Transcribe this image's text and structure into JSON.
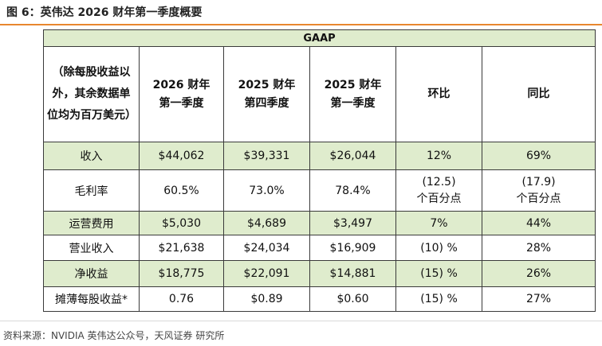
{
  "figure": {
    "title": "图 6：英伟达 2026 财年第一季度概要",
    "source": "资料来源：NVIDIA 英伟达公众号，天风证券 研究所"
  },
  "table": {
    "group_header": "GAAP",
    "corner_label": "（除每股收益以外，其余数据单位均为百万美元）",
    "columns": [
      {
        "line1": "2026 财年",
        "line2": "第一季度"
      },
      {
        "line1": "2025 财年",
        "line2": "第四季度"
      },
      {
        "line1": "2025 财年",
        "line2": "第一季度"
      },
      {
        "line1": "环比",
        "line2": ""
      },
      {
        "line1": "同比",
        "line2": ""
      }
    ],
    "rows": [
      {
        "label": "收入",
        "values": [
          "$44,062",
          "$39,331",
          "$26,044",
          "12%",
          "69%"
        ]
      },
      {
        "label": "毛利率",
        "values": [
          "60.5%",
          "73.0%",
          "78.4%",
          "(12.5)",
          "(17.9)"
        ],
        "sub": [
          "个百分点",
          "个百分点"
        ]
      },
      {
        "label": "运营费用",
        "values": [
          "$5,030",
          "$4,689",
          "$3,497",
          "7%",
          "44%"
        ]
      },
      {
        "label": "营业收入",
        "values": [
          "$21,638",
          "$24,034",
          "$16,909",
          "(10) %",
          "28%"
        ]
      },
      {
        "label": "净收益",
        "values": [
          "$18,775",
          "$22,091",
          "$14,881",
          "(15) %",
          "26%"
        ]
      },
      {
        "label": "摊薄每股收益*",
        "values": [
          "0.76",
          "$0.89",
          "$0.60",
          "(15) %",
          "27%"
        ]
      }
    ]
  }
}
